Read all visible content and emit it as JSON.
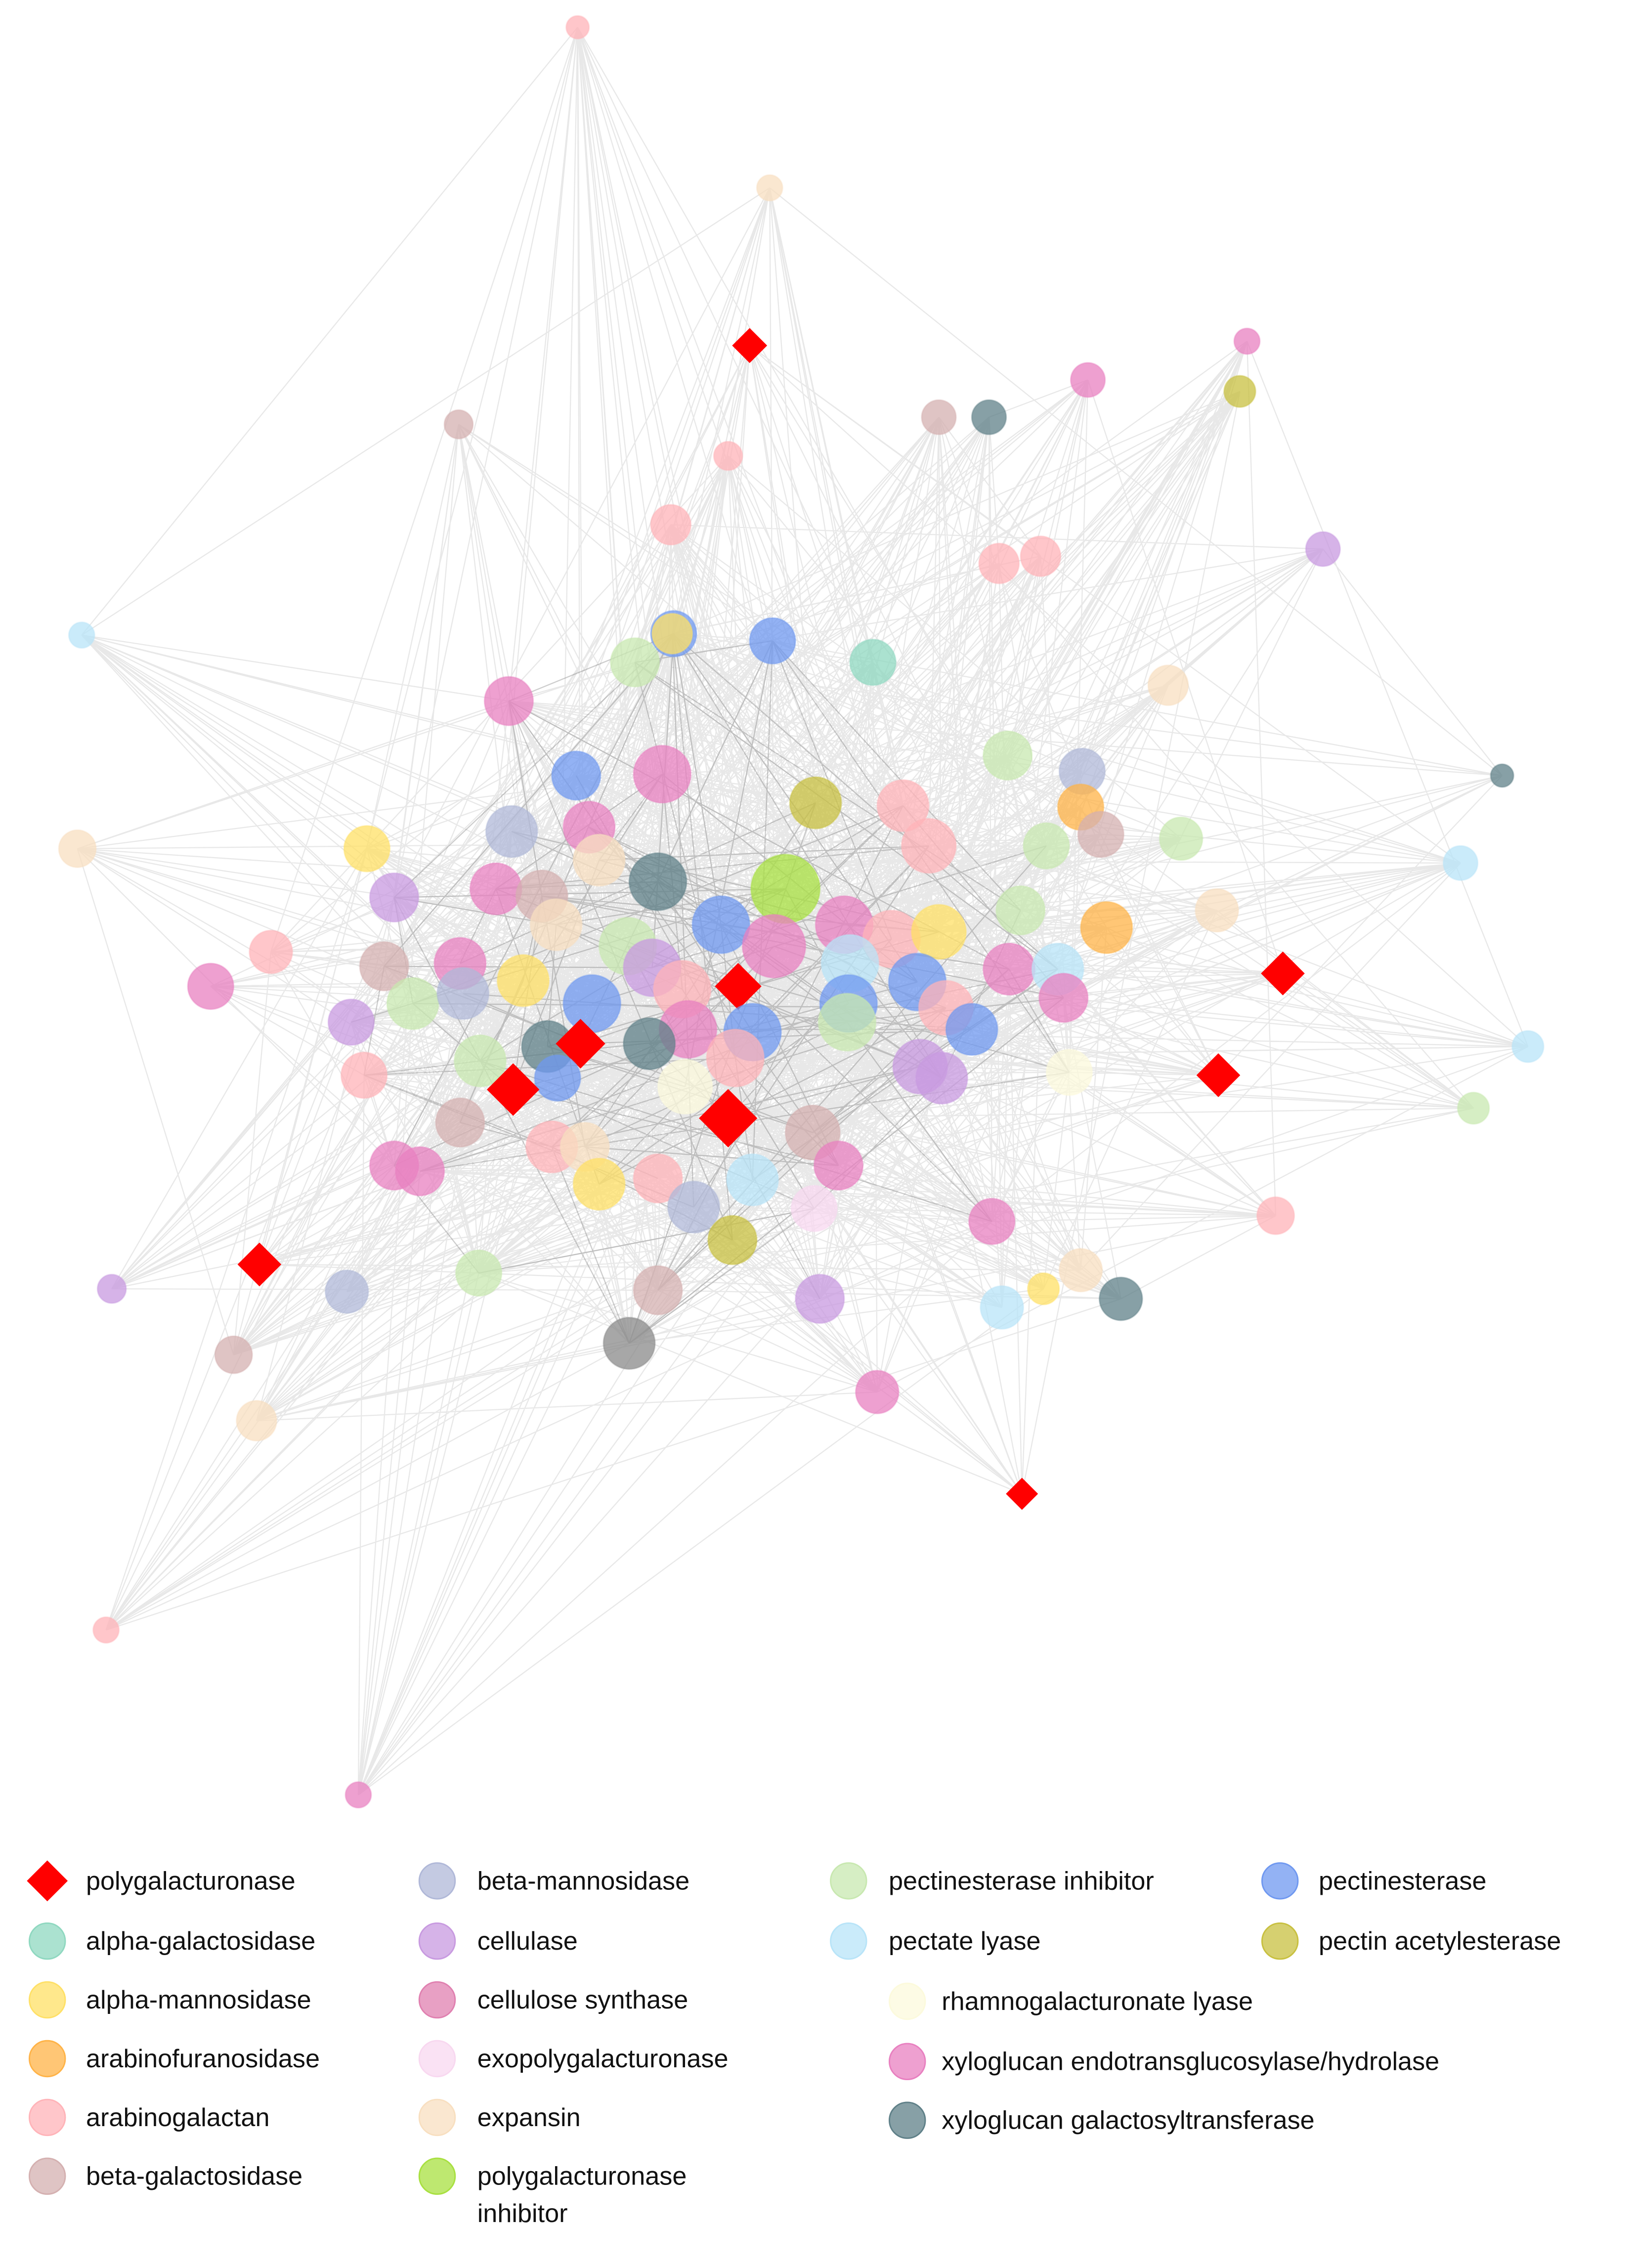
{
  "legend": [
    {
      "label": "polygalacturonase"
    },
    {
      "label": "alpha-galactosidase"
    },
    {
      "label": "alpha-mannosidase"
    },
    {
      "label": "arabinofuranosidase"
    },
    {
      "label": "arabinogalactan"
    },
    {
      "label": "beta-galactosidase"
    },
    {
      "label": "beta-mannosidase"
    },
    {
      "label": "cellulase"
    },
    {
      "label": "cellulose synthase"
    },
    {
      "label": "exopolygalacturonase"
    },
    {
      "label": "expansin"
    },
    {
      "label": "polygalacturonase inhibitor"
    },
    {
      "label": "pectinesterase inhibitor"
    },
    {
      "label": "pectate lyase"
    },
    {
      "label": "rhamnogalacturonate lyase"
    },
    {
      "label": "xyloglucan endotransglucosylase/hydrolase"
    },
    {
      "label": "xyloglucan galactosyltransferase"
    },
    {
      "label": "pectinesterase"
    },
    {
      "label": "pectin acetylesterase"
    }
  ]
}
